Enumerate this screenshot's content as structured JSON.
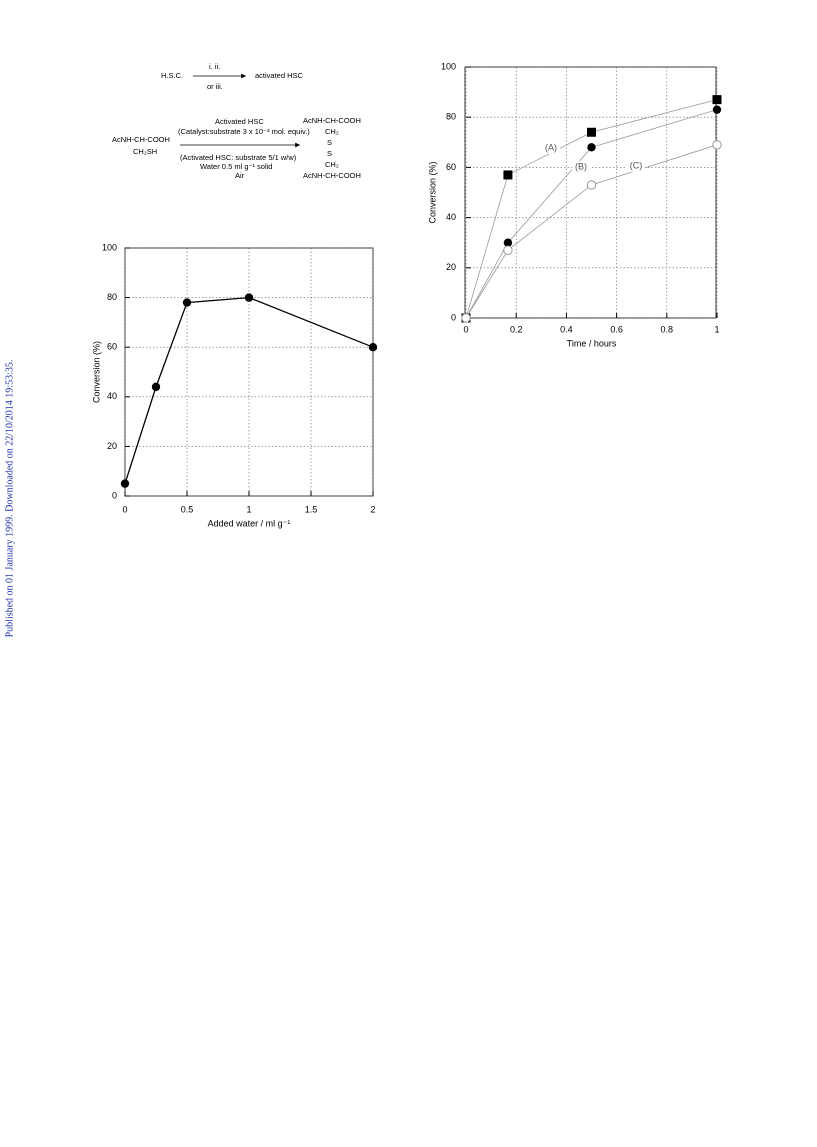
{
  "side_note": "Published on 01 January 1999. Downloaded on 22/10/2014 19:53:35.",
  "scheme": {
    "reagent": "H.S.C.",
    "conditions_top": "i. ii.",
    "conditions_bottom": "or iii.",
    "product1": "activated HSC",
    "substrate_line1": "AcNH-CH-COOH",
    "substrate_line2": "CH₂SH",
    "arrow_top1": "Activated HSC",
    "arrow_top2": "(Catalyst:substrate 3 x 10⁻³ mol. equiv.)",
    "arrow_bottom1": "(Activated HSC: substrate 5/1 w/w)",
    "arrow_bottom2": "Water 0.5 ml g⁻¹ solid",
    "arrow_bottom3": "Air",
    "product_lines": [
      "AcNH-CH-COOH",
      "CH₂",
      "S",
      "S",
      "CH₂",
      "AcNH-CH-COOH"
    ]
  },
  "chart_data": [
    {
      "type": "line",
      "xlabel": "Added water / ml g⁻¹",
      "ylabel": "Conversion  (%)",
      "x": [
        0,
        0.25,
        0.5,
        1,
        2
      ],
      "values": [
        5,
        44,
        78,
        80,
        60
      ],
      "color": "#000000",
      "marker": "circle",
      "xlim": [
        0,
        2
      ],
      "xticks": [
        0,
        0.5,
        1,
        1.5,
        2
      ],
      "ylim": [
        0,
        100
      ],
      "yticks": [
        0,
        20,
        40,
        60,
        80,
        100
      ],
      "grid": true
    },
    {
      "type": "line",
      "xlabel": "Time /  hours",
      "ylabel": "Conversion (%)",
      "x": [
        0,
        0.167,
        0.5,
        1
      ],
      "series": [
        {
          "name": "(A)",
          "color": "#999999",
          "marker": "square",
          "values": [
            0,
            57,
            74,
            87
          ]
        },
        {
          "name": "(B)",
          "color": "#999999",
          "marker": "circle",
          "values": [
            0,
            30,
            68,
            83
          ]
        },
        {
          "name": "(C)",
          "color": "#999999",
          "marker": "open-circle",
          "values": [
            0,
            27,
            53,
            69
          ]
        }
      ],
      "xlim": [
        0,
        1
      ],
      "xticks": [
        0,
        0.2,
        0.4,
        0.6,
        0.8,
        1
      ],
      "ylim": [
        0,
        100
      ],
      "yticks": [
        0,
        20,
        40,
        60,
        80,
        100
      ],
      "grid": true
    }
  ]
}
